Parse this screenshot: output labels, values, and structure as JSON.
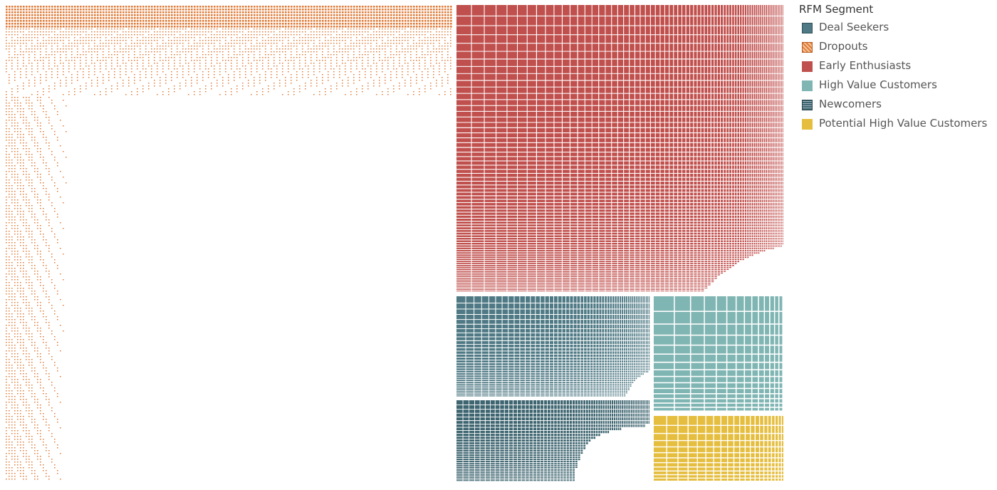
{
  "chart_data": {
    "type": "treemap",
    "legend": {
      "title": "RFM Segment",
      "placement": "right"
    },
    "segments": [
      {
        "name": "Dropouts",
        "color": "#e07b39"
      },
      {
        "name": "Early Enthusiasts",
        "color": "#c0504d"
      },
      {
        "name": "Deal Seekers",
        "color": "#4f7a85"
      },
      {
        "name": "Newcomers",
        "color": "#3e6570"
      },
      {
        "name": "High Value Customers",
        "color": "#7fb5b2"
      },
      {
        "name": "Potential High Value Customers",
        "color": "#e5be3f"
      }
    ],
    "legend_order": [
      "Deal Seekers",
      "Dropouts",
      "Early Enthusiasts",
      "High Value Customers",
      "Newcomers",
      "Potential High Value Customers"
    ],
    "relative_share": {
      "Dropouts": 0.5,
      "Early Enthusiasts": 0.259,
      "Deal Seekers": 0.066,
      "Newcomers": 0.062,
      "High Value Customers": 0.063,
      "Potential High Value Customers": 0.05
    }
  }
}
